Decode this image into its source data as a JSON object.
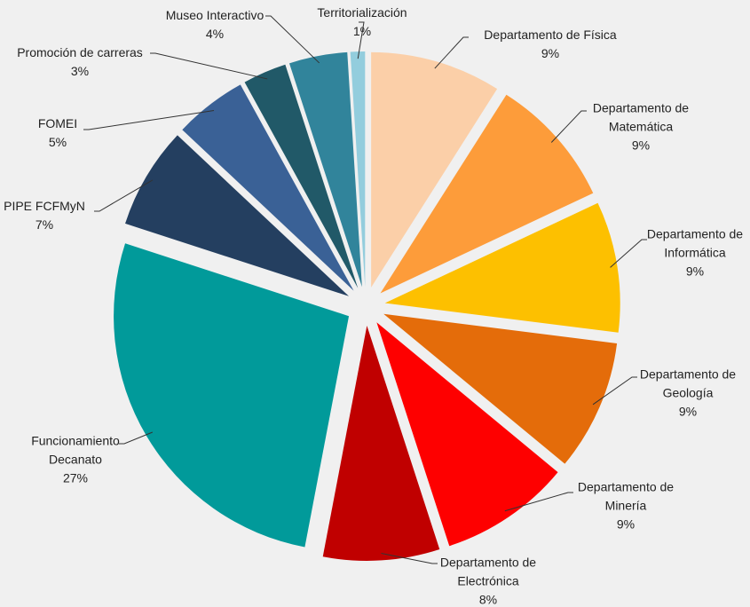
{
  "chart_data": {
    "type": "pie",
    "categories": [
      "Departamento de Física",
      "Departamento de Matemática",
      "Departamento de Informática",
      "Departamento de Geología",
      "Departamento de Minería",
      "Departamento de Electrónica",
      "Funcionamiento Decanato",
      "PIPE FCFMyN",
      "FOMEI",
      "Promoción de carreras",
      "Museo Interactivo",
      "Territorialización"
    ],
    "values": [
      9,
      9,
      9,
      9,
      9,
      8,
      27,
      7,
      5,
      3,
      4,
      1
    ],
    "value_labels": [
      "9%",
      "9%",
      "9%",
      "9%",
      "9%",
      "8%",
      "27%",
      "7%",
      "5%",
      "3%",
      "4%",
      "1%"
    ],
    "colors": [
      "#fbcfa8",
      "#fd9c3a",
      "#fdc000",
      "#e46c0a",
      "#fe0000",
      "#c00000",
      "#019a9a",
      "#243f60",
      "#3a6196",
      "#215968",
      "#31849b",
      "#93cddd"
    ]
  }
}
